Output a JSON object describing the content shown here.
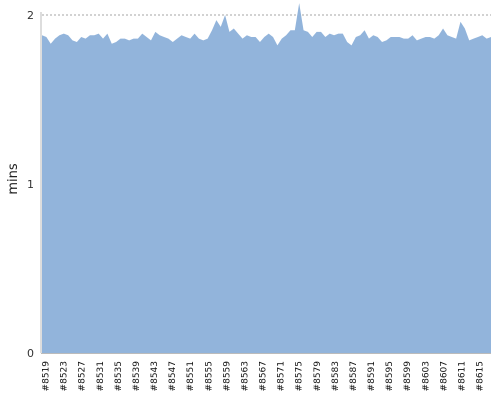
{
  "colors": {
    "area_fill": "#92b4db",
    "grid": "#888888",
    "axis": "#bbbbbb"
  },
  "chart_data": {
    "type": "area",
    "title": "",
    "xlabel": "",
    "ylabel": "mins",
    "ylim": [
      0,
      2
    ],
    "yticks": [
      0,
      1,
      2
    ],
    "grid": "horizontal dashed",
    "legend": "none",
    "x_ticks": [
      "#8519",
      "#8523",
      "#8527",
      "#8531",
      "#8535",
      "#8539",
      "#8543",
      "#8547",
      "#8551",
      "#8555",
      "#8559",
      "#8563",
      "#8567",
      "#8571",
      "#8575",
      "#8579",
      "#8583",
      "#8587",
      "#8591",
      "#8595",
      "#8599",
      "#8603",
      "#8607",
      "#8611",
      "#8615"
    ],
    "series": [
      {
        "values": [
          1.88,
          1.87,
          1.83,
          1.86,
          1.88,
          1.89,
          1.88,
          1.85,
          1.84,
          1.87,
          1.86,
          1.88,
          1.88,
          1.89,
          1.86,
          1.89,
          1.83,
          1.84,
          1.86,
          1.86,
          1.85,
          1.86,
          1.86,
          1.89,
          1.87,
          1.85,
          1.9,
          1.88,
          1.87,
          1.86,
          1.84,
          1.86,
          1.88,
          1.87,
          1.86,
          1.89,
          1.86,
          1.85,
          1.86,
          1.91,
          1.97,
          1.93,
          2.0,
          1.9,
          1.92,
          1.89,
          1.86,
          1.88,
          1.87,
          1.87,
          1.84,
          1.87,
          1.89,
          1.87,
          1.82,
          1.86,
          1.88,
          1.91,
          1.91,
          2.07,
          1.91,
          1.9,
          1.87,
          1.9,
          1.9,
          1.87,
          1.89,
          1.88,
          1.89,
          1.89,
          1.84,
          1.82,
          1.87,
          1.88,
          1.91,
          1.86,
          1.88,
          1.87,
          1.84,
          1.85,
          1.87,
          1.87,
          1.87,
          1.86,
          1.86,
          1.88,
          1.85,
          1.86,
          1.87,
          1.87,
          1.86,
          1.88,
          1.92,
          1.88,
          1.87,
          1.86,
          1.96,
          1.92,
          1.85,
          1.86,
          1.87,
          1.88,
          1.86,
          1.87
        ]
      }
    ]
  }
}
